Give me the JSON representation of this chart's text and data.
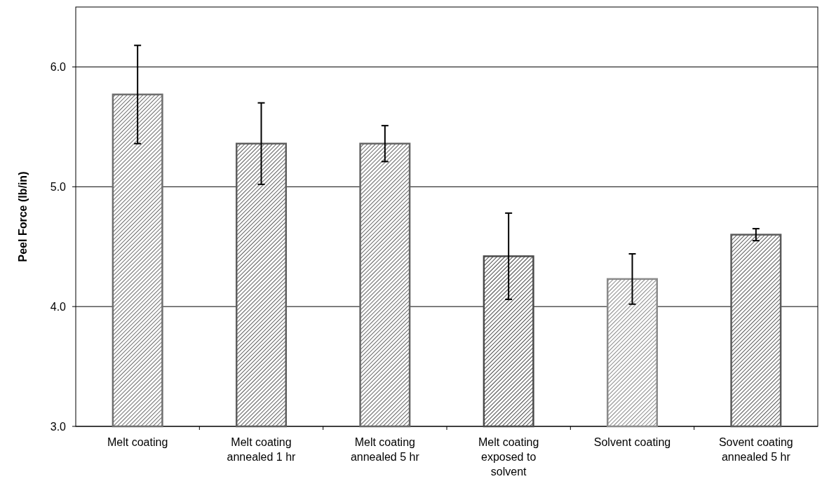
{
  "chart_data": {
    "type": "bar",
    "ylabel": "Peel Force (lb/in)",
    "categories": [
      "Melt coating",
      "Melt coating annealed 1 hr",
      "Melt coating annealed 5 hr",
      "Melt coating exposed to solvent",
      "Solvent coating",
      "Sovent coating annealed 5 hr"
    ],
    "values": [
      5.77,
      5.36,
      5.36,
      4.42,
      4.23,
      4.6
    ],
    "errors": [
      0.41,
      0.34,
      0.15,
      0.36,
      0.21,
      0.05
    ],
    "colors": [
      "#6e6e6e",
      "#5e5e5e",
      "#666666",
      "#4a4a4a",
      "#8a8a8a",
      "#5a5a5a"
    ],
    "ylim": [
      3,
      6.5
    ],
    "yticks": [
      {
        "value": 3,
        "label": "3.0"
      },
      {
        "value": 4,
        "label": "4.0"
      },
      {
        "value": 5,
        "label": "5.0"
      },
      {
        "value": 6,
        "label": "6.0"
      }
    ],
    "grid": "y"
  }
}
